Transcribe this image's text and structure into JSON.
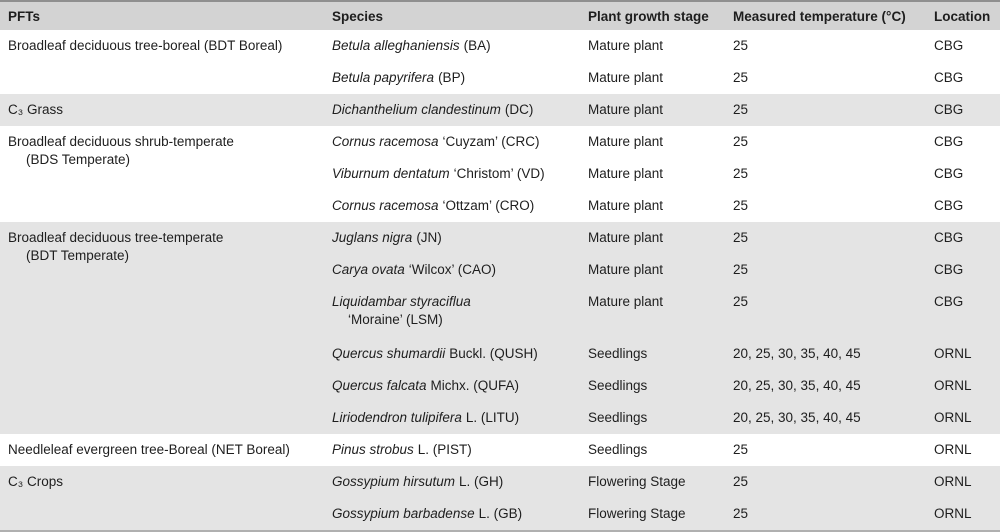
{
  "table": {
    "columns": {
      "pfts": "PFTs",
      "species": "Species",
      "stage": "Plant growth stage",
      "temperature": "Measured temperature (°C)",
      "location": "Location"
    },
    "colors": {
      "header_bg": "#d3d3d3",
      "band_gray": "#e4e4e4",
      "band_white": "#ffffff",
      "text": "#1e1e1e",
      "top_border": "#8f8f8f",
      "bottom_border": "#b0b0b0"
    },
    "rows": [
      {
        "pft1": "Broadleaf deciduous tree-boreal (BDT Boreal)",
        "sp_it": "Betula alleghaniensis",
        "sp_ro": "(BA)",
        "stage": "Mature plant",
        "temp": "25",
        "loc": "CBG"
      },
      {
        "sp_it": "Betula papyrifera",
        "sp_ro": "(BP)",
        "stage": "Mature plant",
        "temp": "25",
        "loc": "CBG"
      },
      {
        "pft1": "C₃ Grass",
        "sp_it": "Dichanthelium clandestinum",
        "sp_ro": "(DC)",
        "stage": "Mature plant",
        "temp": "25",
        "loc": "CBG"
      },
      {
        "pft1": "Broadleaf deciduous shrub-temperate",
        "pft2": "(BDS Temperate)",
        "sp_it": "Cornus racemosa",
        "sp_ro": "‘Cuyzam’ (CRC)",
        "stage": "Mature plant",
        "temp": "25",
        "loc": "CBG"
      },
      {
        "sp_it": "Viburnum dentatum",
        "sp_ro": "‘Christom’ (VD)",
        "stage": "Mature plant",
        "temp": "25",
        "loc": "CBG"
      },
      {
        "sp_it": "Cornus racemosa",
        "sp_ro": "‘Ottzam’ (CRO)",
        "stage": "Mature plant",
        "temp": "25",
        "loc": "CBG"
      },
      {
        "pft1": "Broadleaf deciduous tree-temperate",
        "pft2": "(BDT Temperate)",
        "sp_it": "Juglans nigra",
        "sp_ro": "(JN)",
        "stage": "Mature plant",
        "temp": "25",
        "loc": "CBG"
      },
      {
        "sp_it": "Carya ovata",
        "sp_ro": "‘Wilcox’ (CAO)",
        "stage": "Mature plant",
        "temp": "25",
        "loc": "CBG"
      },
      {
        "sp_it": "Liquidambar styraciflua",
        "sp_l2": "‘Moraine’ (LSM)",
        "stage": "Mature plant",
        "temp": "25",
        "loc": "CBG"
      },
      {
        "sp_it": "Quercus shumardii",
        "sp_ro": "Buckl. (QUSH)",
        "stage": "Seedlings",
        "temp": "20, 25, 30, 35, 40, 45",
        "loc": "ORNL"
      },
      {
        "sp_it": "Quercus falcata",
        "sp_ro": "Michx. (QUFA)",
        "stage": "Seedlings",
        "temp": "20, 25, 30, 35, 40, 45",
        "loc": "ORNL"
      },
      {
        "sp_it": "Liriodendron tulipifera",
        "sp_ro": "L. (LITU)",
        "stage": "Seedlings",
        "temp": "20, 25, 30, 35, 40, 45",
        "loc": "ORNL"
      },
      {
        "pft1": "Needleleaf evergreen tree-Boreal (NET Boreal)",
        "sp_it": "Pinus strobus",
        "sp_ro": "L. (PIST)",
        "stage": "Seedlings",
        "temp": "25",
        "loc": "ORNL"
      },
      {
        "pft1": "C₃ Crops",
        "sp_it": "Gossypium hirsutum",
        "sp_ro": "L. (GH)",
        "stage": "Flowering Stage",
        "temp": "25",
        "loc": "ORNL"
      },
      {
        "sp_it": "Gossypium barbadense",
        "sp_ro": "L. (GB)",
        "stage": "Flowering Stage",
        "temp": "25",
        "loc": "ORNL"
      }
    ]
  }
}
